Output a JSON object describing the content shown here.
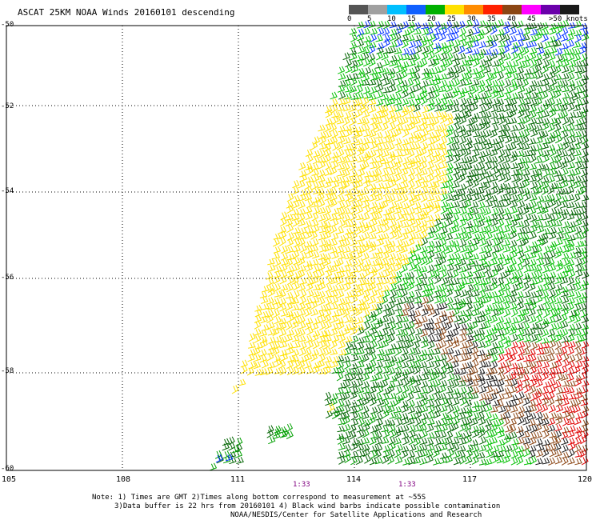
{
  "title": "ASCAT 25KM NOAA Winds 20160101 descending",
  "legend": {
    "labels": [
      "0",
      "5",
      "10",
      "15",
      "20",
      "25",
      "30",
      "35",
      "40",
      "45",
      ">50 knots"
    ],
    "colors": [
      "#555555",
      "#a0a0a0",
      "#00bfff",
      "#1060ff",
      "#00b000",
      "#ffe000",
      "#ff8c00",
      "#ff2000",
      "#8b4513",
      "#ff00ff",
      "#6a00aa",
      "#1a1a1a"
    ]
  },
  "axes": {
    "lat_labels": [
      "-50",
      "-52",
      "-54",
      "-56",
      "-58",
      "-60"
    ],
    "lon_labels": [
      "105",
      "108",
      "111",
      "114",
      "117",
      "120"
    ]
  },
  "pass_times": [
    "1:33",
    "1:33"
  ],
  "notes": [
    "Note: 1) Times are GMT 2)Times along bottom correspond to measurement at ~55S",
    "3)Data buffer is 22 hrs from 20160101 4) Black wind barbs indicate possible contamination",
    "NOAA/NESDIS/Center for Satellite Applications and Research"
  ],
  "barb_colors": {
    "calm_yellow": "#ffe000",
    "moderate_green": "#00a000",
    "dark_green": "#006400",
    "light_green": "#00c000",
    "blue": "#0030ff",
    "brown": "#8b4513",
    "red": "#e00000",
    "magenta": "#ff00ff",
    "black": "#1a1a1a"
  }
}
